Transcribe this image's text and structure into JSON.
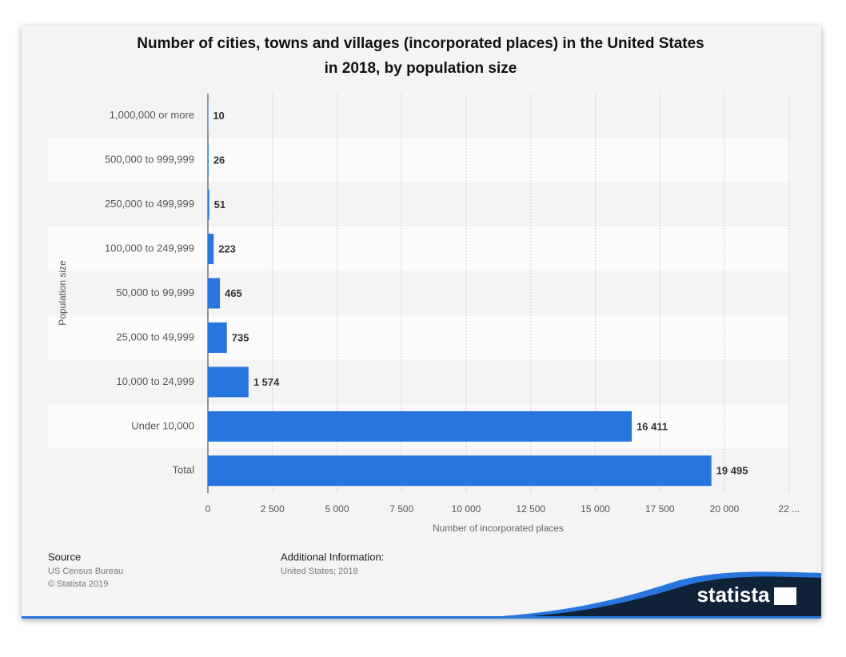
{
  "chart_data": {
    "type": "bar",
    "orientation": "horizontal",
    "title": "Number of cities, towns and villages (incorporated places) in the United States",
    "title_line2": "in 2018, by population size",
    "y_label": "Population size",
    "x_label": "Number of incorporated places",
    "categories": [
      "1,000,000 or more",
      "500,000 to 999,999",
      "250,000 to 499,999",
      "100,000 to 249,999",
      "50,000 to 99,999",
      "25,000 to 49,999",
      "10,000 to 24,999",
      "Under 10,000",
      "Total"
    ],
    "values": [
      10,
      26,
      51,
      223,
      465,
      735,
      1574,
      16411,
      19495
    ],
    "value_labels": [
      "10",
      "26",
      "51",
      "223",
      "465",
      "735",
      "1 574",
      "16 411",
      "19 495"
    ],
    "color": "#2876dd",
    "xlim": [
      0,
      22500
    ],
    "xticks": [
      0,
      {
        "value": 2500,
        "label": "2 500"
      },
      {
        "value": 5000,
        "label": "5 000"
      },
      {
        "value": 7500,
        "label": "7 500"
      },
      {
        "value": 10000,
        "label": "10 000"
      },
      {
        "value": 12500,
        "label": "12 500"
      },
      {
        "value": 15000,
        "label": "15 000"
      },
      {
        "value": 17500,
        "label": "17 500"
      },
      {
        "value": 20000,
        "label": "20 000"
      },
      {
        "value": 22500,
        "label": "22 ..."
      }
    ],
    "grid": true
  },
  "footer": {
    "source_title": "Source",
    "source_lines": [
      "US Census Bureau",
      "© Statista 2019"
    ],
    "info_title": "Additional Information:",
    "info_lines": [
      "United States; 2018"
    ],
    "logo": "statista"
  }
}
